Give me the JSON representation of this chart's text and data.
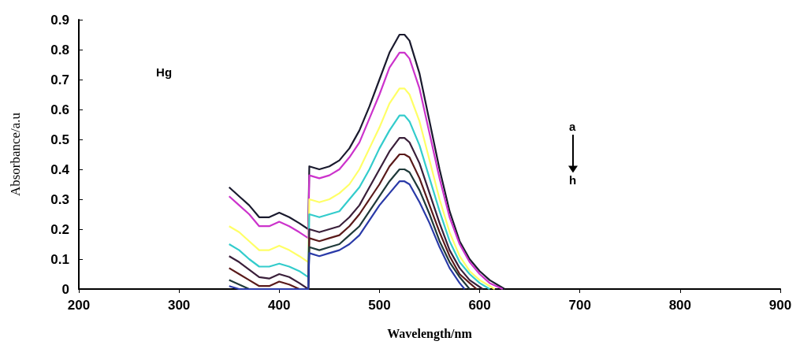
{
  "chart_data": {
    "type": "line",
    "xlabel": "Wavelength/nm",
    "ylabel": "Absorbance/a.u",
    "annotations": [
      "Hg",
      "a",
      "h"
    ],
    "xlim": [
      200,
      900
    ],
    "xticks": [
      200,
      300,
      400,
      500,
      600,
      700,
      800,
      900
    ],
    "ylim": [
      0,
      0.9
    ],
    "yticks": [
      0,
      0.1,
      0.2,
      0.3,
      0.4,
      0.5,
      0.6,
      0.7,
      0.8,
      0.9
    ],
    "grid": false,
    "marker": "none",
    "line_style": "solid",
    "series": [
      {
        "color": "#1a1a2e",
        "x": [
          350,
          360,
          370,
          380,
          390,
          400,
          410,
          420,
          429,
          430,
          440,
          450,
          460,
          470,
          480,
          490,
          500,
          510,
          520,
          525,
          530,
          540,
          550,
          560,
          570,
          580,
          590,
          600,
          610,
          620,
          625
        ],
        "values": [
          0.34,
          0.31,
          0.28,
          0.24,
          0.24,
          0.255,
          0.24,
          0.22,
          0.2,
          0.41,
          0.4,
          0.41,
          0.43,
          0.47,
          0.53,
          0.61,
          0.7,
          0.79,
          0.85,
          0.85,
          0.83,
          0.72,
          0.56,
          0.4,
          0.26,
          0.16,
          0.1,
          0.06,
          0.03,
          0.01,
          0
        ]
      },
      {
        "color": "#cc33cc",
        "x": [
          350,
          360,
          370,
          380,
          390,
          400,
          410,
          420,
          429,
          430,
          440,
          450,
          460,
          470,
          480,
          490,
          500,
          510,
          520,
          525,
          530,
          540,
          550,
          560,
          570,
          580,
          590,
          600,
          610,
          623
        ],
        "values": [
          0.31,
          0.28,
          0.25,
          0.21,
          0.21,
          0.225,
          0.21,
          0.19,
          0.17,
          0.38,
          0.37,
          0.38,
          0.4,
          0.44,
          0.49,
          0.57,
          0.65,
          0.74,
          0.79,
          0.79,
          0.77,
          0.67,
          0.52,
          0.37,
          0.24,
          0.15,
          0.09,
          0.05,
          0.02,
          0
        ]
      },
      {
        "color": "#ffff66",
        "x": [
          350,
          360,
          370,
          380,
          390,
          400,
          410,
          420,
          429,
          430,
          440,
          450,
          460,
          470,
          480,
          490,
          500,
          510,
          520,
          525,
          530,
          540,
          550,
          560,
          570,
          580,
          590,
          600,
          615
        ],
        "values": [
          0.21,
          0.19,
          0.16,
          0.13,
          0.13,
          0.145,
          0.13,
          0.11,
          0.09,
          0.3,
          0.29,
          0.3,
          0.32,
          0.35,
          0.4,
          0.47,
          0.54,
          0.62,
          0.67,
          0.67,
          0.65,
          0.56,
          0.43,
          0.3,
          0.19,
          0.11,
          0.06,
          0.03,
          0
        ]
      },
      {
        "color": "#33cccc",
        "x": [
          350,
          360,
          370,
          380,
          390,
          400,
          410,
          420,
          429,
          430,
          440,
          450,
          460,
          470,
          480,
          490,
          500,
          510,
          520,
          525,
          530,
          540,
          550,
          560,
          570,
          580,
          590,
          600,
          610
        ],
        "values": [
          0.15,
          0.13,
          0.1,
          0.075,
          0.075,
          0.085,
          0.075,
          0.06,
          0.04,
          0.25,
          0.24,
          0.25,
          0.26,
          0.3,
          0.34,
          0.4,
          0.47,
          0.53,
          0.58,
          0.58,
          0.56,
          0.48,
          0.37,
          0.26,
          0.16,
          0.09,
          0.05,
          0.02,
          0
        ]
      },
      {
        "color": "#3a1f3a",
        "x": [
          350,
          360,
          370,
          380,
          390,
          400,
          410,
          420,
          429,
          430,
          440,
          450,
          460,
          470,
          480,
          490,
          500,
          510,
          520,
          525,
          530,
          540,
          550,
          560,
          570,
          580,
          590,
          603
        ],
        "values": [
          0.11,
          0.09,
          0.065,
          0.04,
          0.035,
          0.05,
          0.04,
          0.02,
          0,
          0.2,
          0.19,
          0.2,
          0.21,
          0.24,
          0.28,
          0.34,
          0.4,
          0.46,
          0.505,
          0.505,
          0.49,
          0.42,
          0.32,
          0.22,
          0.13,
          0.07,
          0.03,
          0
        ]
      },
      {
        "color": "#5a1a1a",
        "x": [
          350,
          360,
          370,
          380,
          390,
          400,
          410,
          420,
          429,
          430,
          440,
          450,
          460,
          470,
          480,
          490,
          500,
          510,
          520,
          525,
          530,
          540,
          550,
          560,
          570,
          580,
          590,
          597
        ],
        "values": [
          0.07,
          0.05,
          0.03,
          0.01,
          0.01,
          0.025,
          0.015,
          0,
          0,
          0.17,
          0.16,
          0.17,
          0.18,
          0.21,
          0.25,
          0.3,
          0.35,
          0.41,
          0.45,
          0.45,
          0.44,
          0.37,
          0.28,
          0.19,
          0.11,
          0.05,
          0.02,
          0
        ]
      },
      {
        "color": "#1f3a3a",
        "x": [
          350,
          360,
          370,
          429,
          430,
          440,
          450,
          460,
          470,
          480,
          490,
          500,
          510,
          520,
          525,
          530,
          540,
          550,
          560,
          570,
          580,
          590
        ],
        "values": [
          0.03,
          0.015,
          0,
          0,
          0.14,
          0.13,
          0.14,
          0.15,
          0.18,
          0.21,
          0.26,
          0.31,
          0.36,
          0.4,
          0.4,
          0.39,
          0.33,
          0.25,
          0.16,
          0.09,
          0.04,
          0
        ]
      },
      {
        "color": "#2a3aa8",
        "x": [
          350,
          360,
          429,
          430,
          440,
          450,
          460,
          470,
          480,
          490,
          500,
          510,
          520,
          525,
          530,
          540,
          550,
          560,
          570,
          580,
          585
        ],
        "values": [
          0.01,
          0,
          0,
          0.12,
          0.11,
          0.12,
          0.13,
          0.15,
          0.18,
          0.23,
          0.28,
          0.32,
          0.36,
          0.36,
          0.35,
          0.29,
          0.22,
          0.14,
          0.07,
          0.02,
          0
        ]
      }
    ]
  }
}
